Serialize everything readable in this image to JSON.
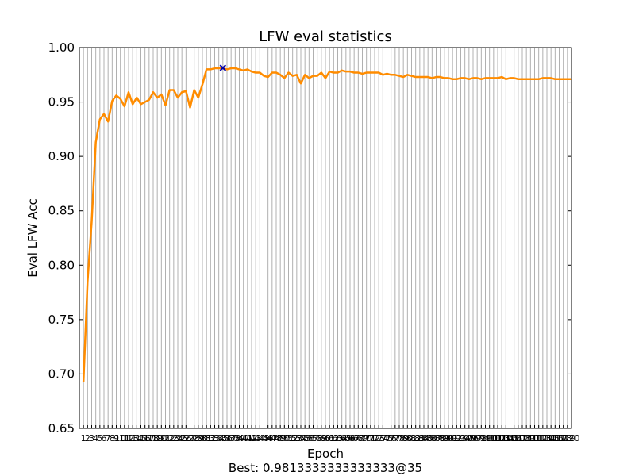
{
  "chart_data": {
    "type": "line",
    "title": "LFW eval statistics",
    "xlabel": "Epoch",
    "ylabel": "Eval LFW Acc",
    "footer": "Best: 0.9813333333333333@35",
    "xlim": [
      0,
      120
    ],
    "ylim": [
      0.65,
      1.0
    ],
    "grid": "vertical",
    "x_ticks": [
      1,
      2,
      3,
      4,
      5,
      6,
      7,
      8,
      9,
      10,
      11,
      12,
      13,
      14,
      15,
      16,
      17,
      18,
      19,
      20,
      21,
      22,
      23,
      24,
      25,
      26,
      27,
      28,
      29,
      30,
      31,
      32,
      33,
      34,
      35,
      36,
      37,
      38,
      39,
      40,
      41,
      42,
      43,
      44,
      45,
      46,
      47,
      48,
      49,
      50,
      51,
      52,
      53,
      54,
      55,
      56,
      57,
      58,
      59,
      60,
      61,
      62,
      63,
      64,
      65,
      66,
      67,
      68,
      69,
      70,
      71,
      72,
      73,
      74,
      75,
      76,
      77,
      78,
      79,
      80,
      81,
      82,
      83,
      84,
      85,
      86,
      87,
      88,
      89,
      90,
      91,
      92,
      93,
      94,
      95,
      96,
      97,
      98,
      99,
      100,
      101,
      102,
      103,
      104,
      105,
      106,
      107,
      108,
      109,
      110,
      111,
      112,
      113,
      114,
      115,
      116,
      117,
      118,
      119,
      120
    ],
    "y_ticks": [
      "0.65",
      "0.70",
      "0.75",
      "0.80",
      "0.85",
      "0.90",
      "0.95",
      "1.00"
    ],
    "series": [
      {
        "color": "#ff8c00",
        "x": [
          1,
          2,
          3,
          4,
          5,
          6,
          7,
          8,
          9,
          10,
          11,
          12,
          13,
          14,
          15,
          16,
          17,
          18,
          19,
          20,
          21,
          22,
          23,
          24,
          25,
          26,
          27,
          28,
          29,
          30,
          31,
          32,
          33,
          34,
          35,
          36,
          37,
          38,
          39,
          40,
          41,
          42,
          43,
          44,
          45,
          46,
          47,
          48,
          49,
          50,
          51,
          52,
          53,
          54,
          55,
          56,
          57,
          58,
          59,
          60,
          61,
          62,
          63,
          64,
          65,
          66,
          67,
          68,
          69,
          70,
          71,
          72,
          73,
          74,
          75,
          76,
          77,
          78,
          79,
          80,
          81,
          82,
          83,
          84,
          85,
          86,
          87,
          88,
          89,
          90,
          91,
          92,
          93,
          94,
          95,
          96,
          97,
          98,
          99,
          100,
          101,
          102,
          103,
          104,
          105,
          106,
          107,
          108,
          109,
          110,
          111,
          112,
          113,
          114,
          115,
          116,
          117,
          118,
          119,
          120
        ],
        "y": [
          0.693,
          0.785,
          0.84,
          0.913,
          0.934,
          0.939,
          0.932,
          0.951,
          0.956,
          0.953,
          0.946,
          0.959,
          0.948,
          0.954,
          0.948,
          0.95,
          0.952,
          0.959,
          0.954,
          0.957,
          0.947,
          0.961,
          0.961,
          0.954,
          0.959,
          0.96,
          0.945,
          0.961,
          0.954,
          0.966,
          0.98,
          0.98,
          0.981,
          0.981,
          0.981,
          0.98,
          0.981,
          0.981,
          0.98,
          0.979,
          0.98,
          0.978,
          0.977,
          0.977,
          0.974,
          0.973,
          0.977,
          0.977,
          0.975,
          0.972,
          0.977,
          0.974,
          0.975,
          0.967,
          0.975,
          0.972,
          0.974,
          0.974,
          0.977,
          0.972,
          0.978,
          0.977,
          0.977,
          0.979,
          0.978,
          0.978,
          0.977,
          0.977,
          0.976,
          0.977,
          0.977,
          0.977,
          0.977,
          0.975,
          0.976,
          0.975,
          0.975,
          0.974,
          0.973,
          0.975,
          0.974,
          0.973,
          0.973,
          0.973,
          0.973,
          0.972,
          0.973,
          0.973,
          0.972,
          0.972,
          0.971,
          0.971,
          0.972,
          0.972,
          0.971,
          0.972,
          0.972,
          0.971,
          0.972,
          0.972,
          0.972,
          0.972,
          0.973,
          0.971,
          0.972,
          0.972,
          0.971,
          0.971,
          0.971,
          0.971,
          0.971,
          0.971,
          0.972,
          0.972,
          0.972,
          0.971,
          0.971,
          0.971,
          0.971,
          0.971
        ]
      }
    ],
    "best_marker": {
      "x": 35,
      "y": 0.9813333333333333,
      "color": "#0000aa"
    }
  }
}
